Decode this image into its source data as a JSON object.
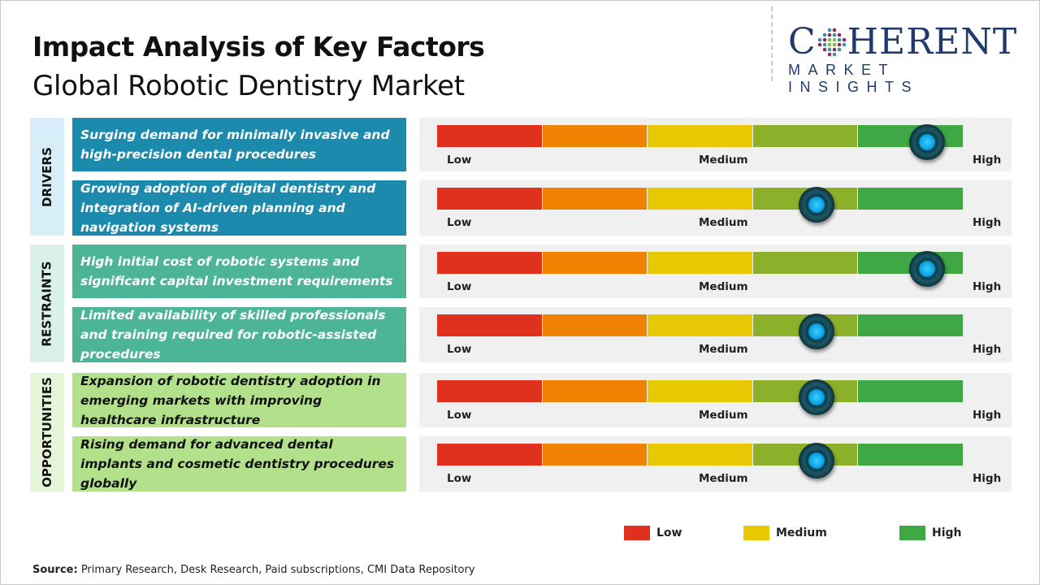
{
  "title": "Impact Analysis of Key Factors",
  "subtitle": "Global Robotic Dentistry Market",
  "logo": {
    "main": "COHERENT",
    "sub": "MARKET INSIGHTS"
  },
  "scale_labels": {
    "low": "Low",
    "medium": "Medium",
    "high": "High"
  },
  "scale_colors": [
    "#e0301e",
    "#ef8200",
    "#e8c800",
    "#8db02a",
    "#3fa845"
  ],
  "groups": [
    {
      "label": "DRIVERS",
      "box_color": "#1b8aac",
      "text_color": "#ffffff",
      "side_color": "#d7eef8",
      "factors": [
        {
          "text": "Surging demand for minimally invasive and high-precision dental procedures",
          "impact": 0.93
        },
        {
          "text": "Growing adoption of digital dentistry and integration of AI-driven planning and navigation systems",
          "impact": 0.72
        }
      ]
    },
    {
      "label": "RESTRAINTS",
      "box_color": "#4cb596",
      "text_color": "#ffffff",
      "side_color": "#daf0ea",
      "factors": [
        {
          "text": "High initial cost of robotic systems and significant capital investment requirements",
          "impact": 0.93
        },
        {
          "text": "Limited availability of skilled professionals and training required for robotic-assisted procedures",
          "impact": 0.72
        }
      ]
    },
    {
      "label": "OPPORTUNITIES",
      "box_color": "#b3e08a",
      "text_color": "#111111",
      "side_color": "#e6f5d8",
      "factors": [
        {
          "text": "Expansion of robotic dentistry adoption in emerging markets with improving healthcare infrastructure",
          "impact": 0.72
        },
        {
          "text": "Rising demand for advanced dental implants and cosmetic dentistry procedures globally",
          "impact": 0.72
        }
      ]
    }
  ],
  "legend": [
    {
      "label": "Low",
      "color": "#e0301e"
    },
    {
      "label": "Medium",
      "color": "#e8c800"
    },
    {
      "label": "High",
      "color": "#3fa845"
    }
  ],
  "source": {
    "label": "Source:",
    "text": " Primary Research, Desk Research, Paid subscriptions, CMI Data Repository"
  }
}
